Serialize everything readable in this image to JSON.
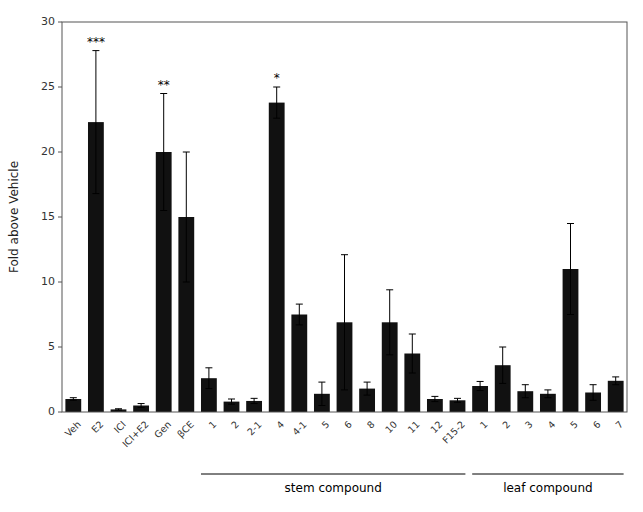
{
  "chart_data": {
    "type": "bar",
    "categories": [
      "Veh",
      "E2",
      "ICI",
      "ICI+E2",
      "Gen",
      "βCE",
      "1",
      "2",
      "2-1",
      "4",
      "4-1",
      "5",
      "6",
      "8",
      "10",
      "11",
      "12",
      "F15-2",
      "1",
      "2",
      "3",
      "4",
      "5",
      "6",
      "7"
    ],
    "values": [
      1.0,
      22.3,
      0.2,
      0.5,
      20.0,
      15.0,
      2.6,
      0.8,
      0.85,
      23.8,
      7.5,
      1.4,
      6.9,
      1.8,
      6.9,
      4.5,
      1.0,
      0.9,
      2.0,
      3.6,
      1.6,
      1.4,
      11.0,
      1.5,
      2.4
    ],
    "errors": [
      0.1,
      5.5,
      0.05,
      0.15,
      4.5,
      5.0,
      0.8,
      0.2,
      0.2,
      1.2,
      0.8,
      0.9,
      5.2,
      0.5,
      2.5,
      1.5,
      0.2,
      0.15,
      0.35,
      1.4,
      0.5,
      0.3,
      3.5,
      0.6,
      0.3
    ],
    "color": "#111111",
    "ylabel": "Fold above Vehicle",
    "ylim": [
      0,
      30
    ],
    "yticks": [
      0,
      5,
      10,
      15,
      20,
      25,
      30
    ],
    "grid": false,
    "annotations": [
      {
        "index": 1,
        "text": "***"
      },
      {
        "index": 4,
        "text": "**"
      },
      {
        "index": 9,
        "text": "*"
      }
    ],
    "groups": [
      {
        "label": "stem compound",
        "start": 6,
        "end": 17
      },
      {
        "label": "leaf compound",
        "start": 18,
        "end": 24
      }
    ]
  }
}
